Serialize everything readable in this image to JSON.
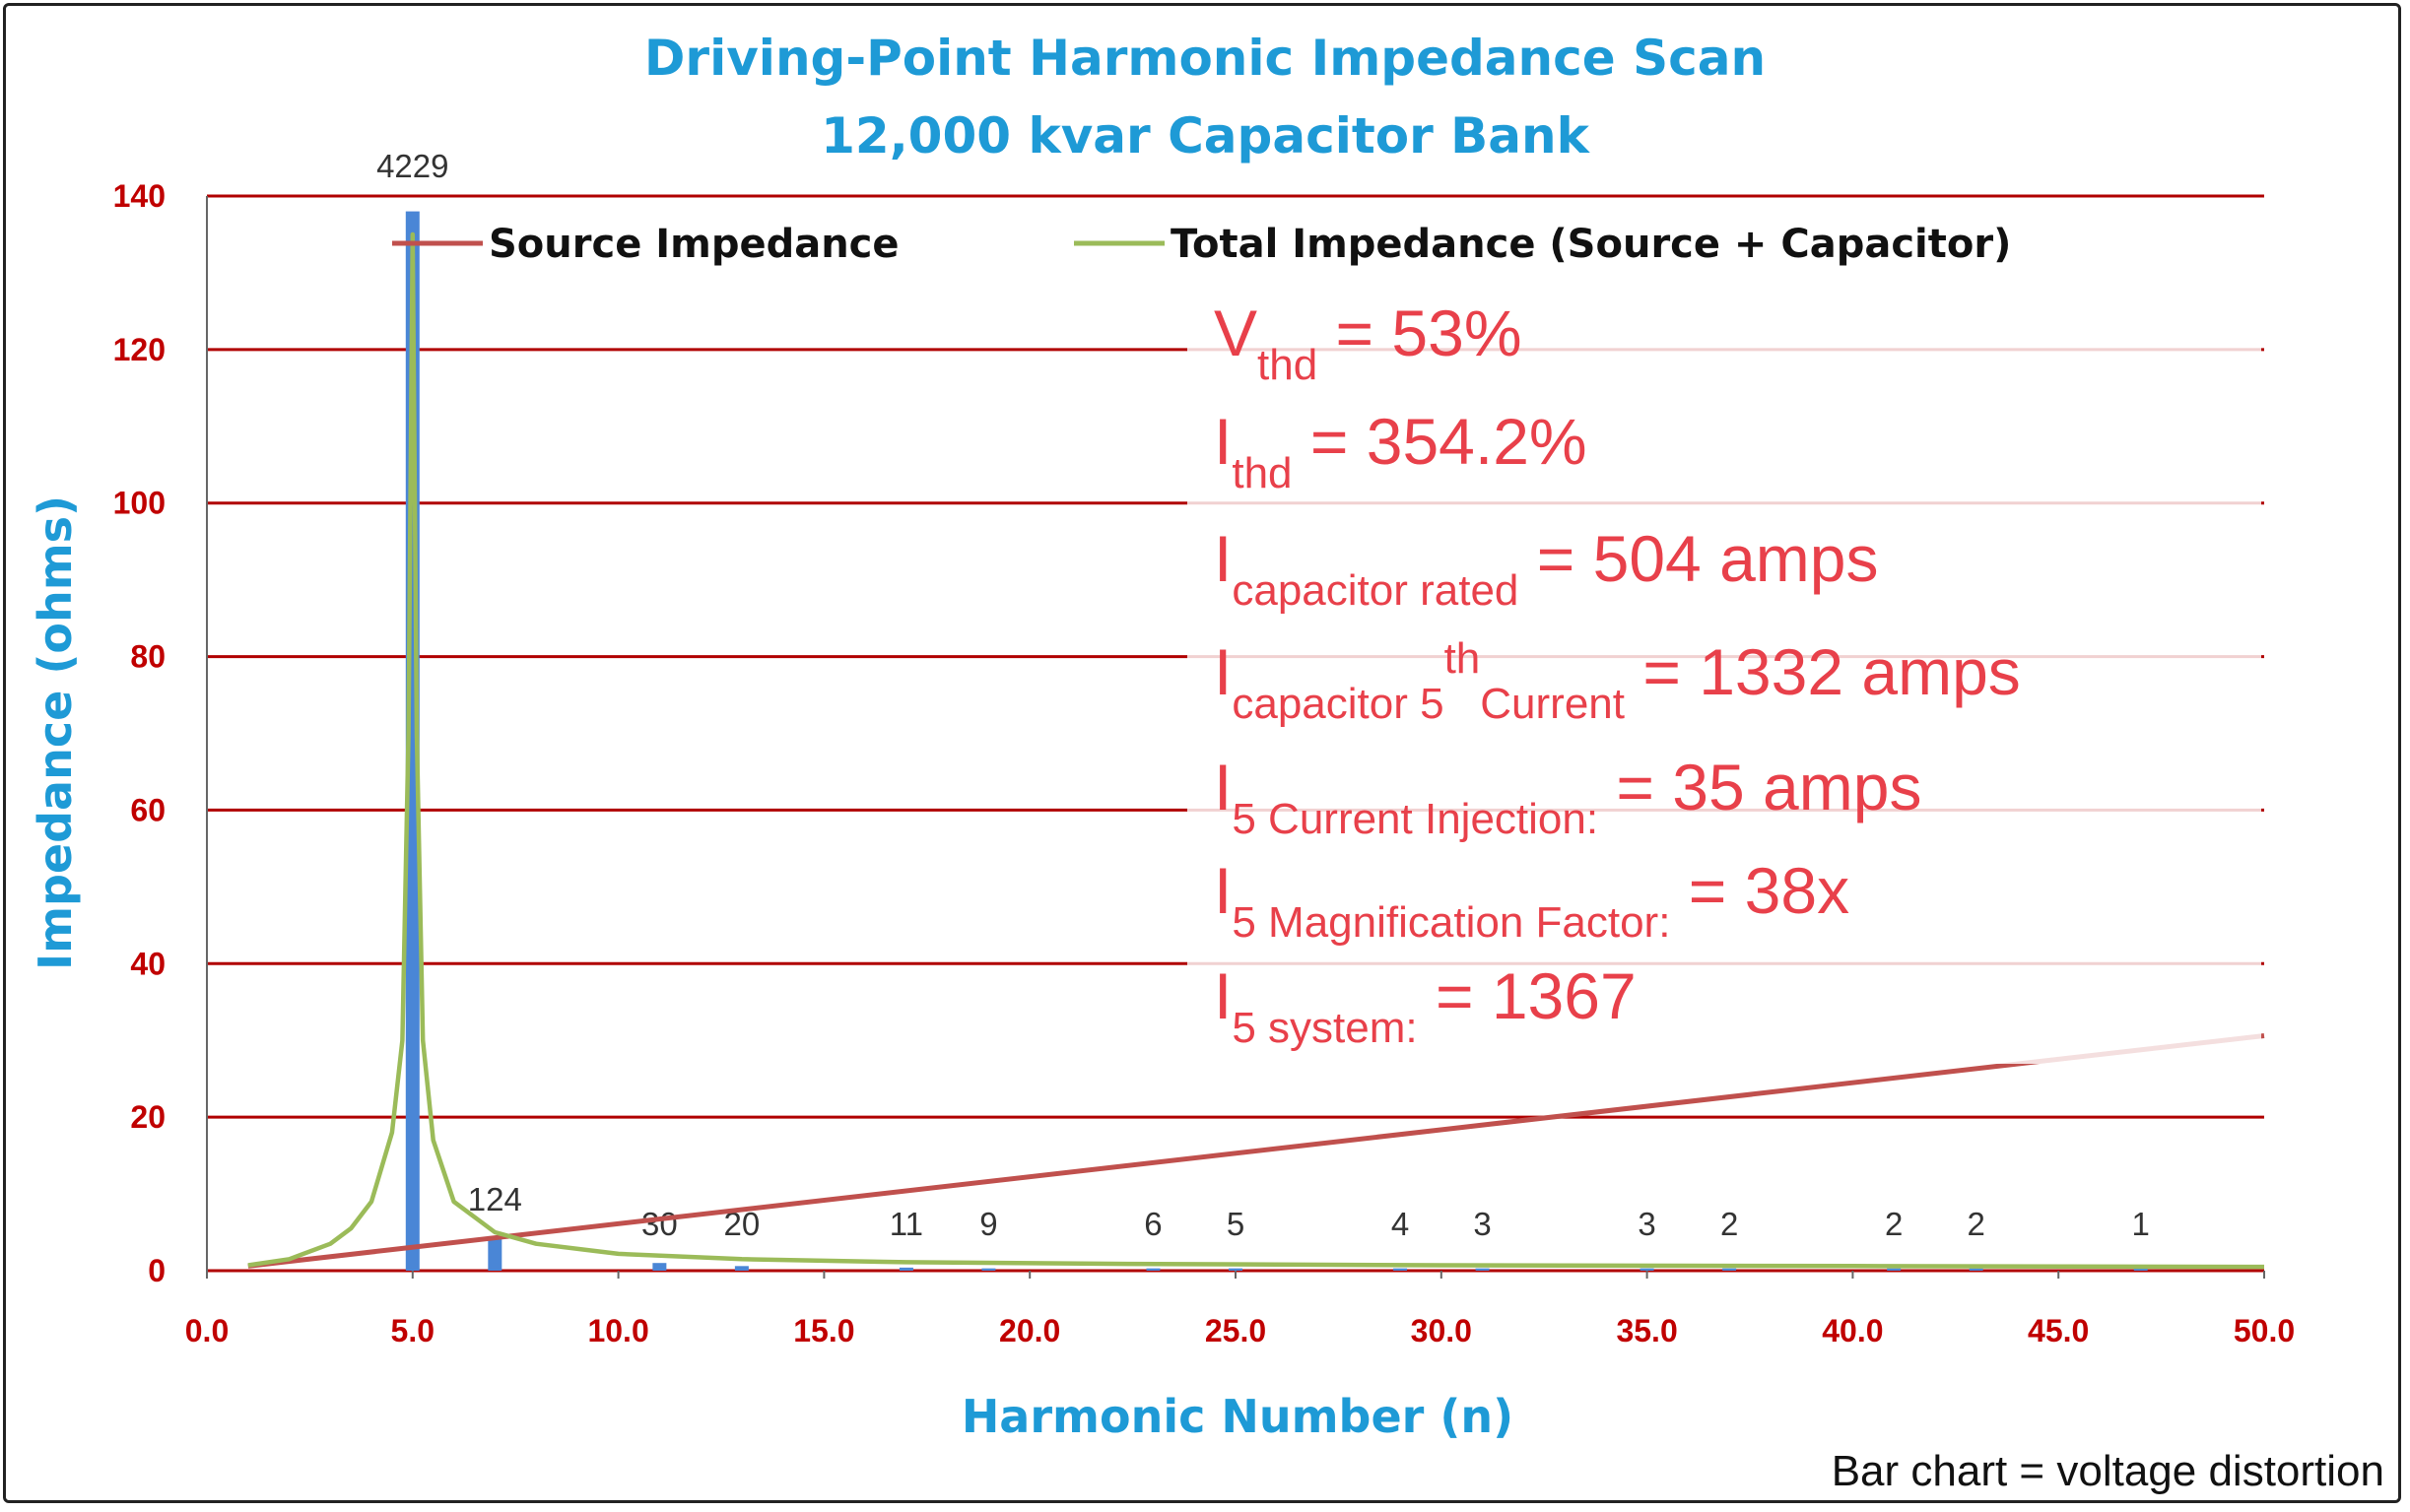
{
  "chart_data": {
    "type": "bar+line",
    "title": [
      "Driving-Point Harmonic Impedance Scan",
      "12,000 kvar Capacitor Bank"
    ],
    "xlabel": "Harmonic Number (n)",
    "ylabel": "Impedance (ohms)",
    "xlim": [
      0,
      50
    ],
    "ylim": [
      0,
      140
    ],
    "x_ticks": [
      "0.0",
      "5.0",
      "10.0",
      "15.0",
      "20.0",
      "25.0",
      "30.0",
      "35.0",
      "40.0",
      "45.0",
      "50.0"
    ],
    "y_ticks": [
      "0",
      "20",
      "40",
      "60",
      "80",
      "100",
      "120",
      "140"
    ],
    "grid": "horizontal",
    "legend": {
      "position": "top",
      "entries": [
        {
          "name": "Source Impedance",
          "color": "#c0504d"
        },
        {
          "name": "Total Impedance (Source + Capacitor)",
          "color": "#9bbb59"
        }
      ]
    },
    "bars": {
      "color": "#4a86d6",
      "points": [
        {
          "x": 5,
          "height": 138,
          "label": "4229"
        },
        {
          "x": 7,
          "height": 4.5,
          "label": "124"
        },
        {
          "x": 11,
          "height": 1,
          "label": "30"
        },
        {
          "x": 13,
          "height": 0.6,
          "label": "20"
        },
        {
          "x": 17,
          "height": 0.4,
          "label": "11"
        },
        {
          "x": 19,
          "height": 0.3,
          "label": "9"
        },
        {
          "x": 23,
          "height": 0.3,
          "label": "6"
        },
        {
          "x": 25,
          "height": 0.3,
          "label": "5"
        },
        {
          "x": 29,
          "height": 0.3,
          "label": "4"
        },
        {
          "x": 31,
          "height": 0.3,
          "label": "3"
        },
        {
          "x": 35,
          "height": 0.3,
          "label": "3"
        },
        {
          "x": 37,
          "height": 0.3,
          "label": "2"
        },
        {
          "x": 41,
          "height": 0.3,
          "label": "2"
        },
        {
          "x": 43,
          "height": 0.3,
          "label": "2"
        },
        {
          "x": 47,
          "height": 0.3,
          "label": "1"
        }
      ]
    },
    "series": [
      {
        "name": "Source Impedance",
        "color": "#c0504d",
        "points": [
          [
            1,
            0.6
          ],
          [
            50,
            30.6
          ]
        ]
      },
      {
        "name": "Total Impedance (Source + Capacitor)",
        "color": "#9bbb59",
        "points": [
          [
            1,
            0.7
          ],
          [
            2,
            1.5
          ],
          [
            3,
            3.5
          ],
          [
            3.5,
            5.5
          ],
          [
            4,
            9
          ],
          [
            4.5,
            18
          ],
          [
            4.75,
            30
          ],
          [
            4.9,
            70
          ],
          [
            5,
            135
          ],
          [
            5.1,
            70
          ],
          [
            5.25,
            30
          ],
          [
            5.5,
            17
          ],
          [
            6,
            9
          ],
          [
            7,
            5
          ],
          [
            8,
            3.5
          ],
          [
            10,
            2.2
          ],
          [
            13,
            1.5
          ],
          [
            17,
            1.1
          ],
          [
            22,
            0.9
          ],
          [
            30,
            0.7
          ],
          [
            40,
            0.6
          ],
          [
            50,
            0.5
          ]
        ]
      }
    ],
    "annotations": [
      {
        "main": "V",
        "sub": "thd",
        "tail": " = 53%"
      },
      {
        "main": "I",
        "sub": "thd",
        "tail": " = 354.2%"
      },
      {
        "main": "I",
        "sub": "capacitor rated",
        "tail": " = 504 amps"
      },
      {
        "main": "I",
        "sub": "capacitor 5",
        "sup": "th",
        "sub2": "Current",
        "tail": " = 1332 amps"
      },
      {
        "main": "I",
        "sub": "5 Current Injection:",
        "tail": " = 35 amps"
      },
      {
        "main": "I",
        "sub": "5 Magnification Factor:",
        "tail": " = 38x"
      },
      {
        "main": "I",
        "sub": "5 system:",
        "tail": " = 1367"
      }
    ],
    "footnote": "Bar chart = voltage distortion"
  }
}
